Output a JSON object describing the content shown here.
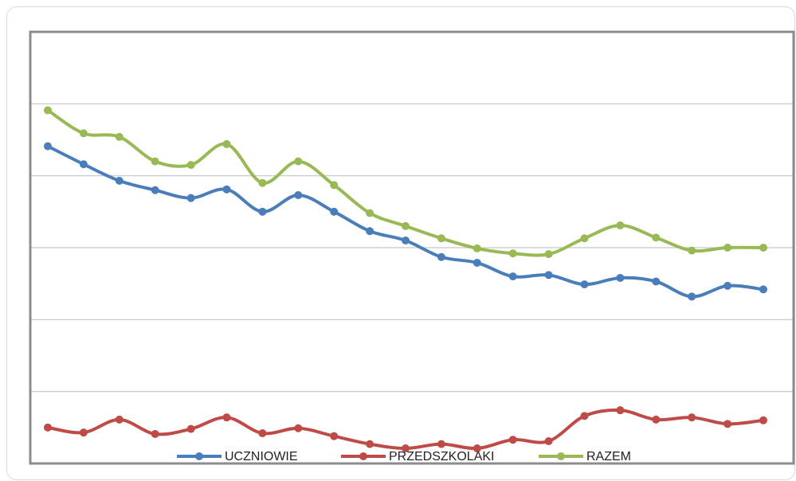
{
  "chart_data": {
    "type": "line",
    "categories": [
      null,
      null,
      null,
      null,
      null,
      null,
      null,
      null,
      null,
      null,
      null,
      null,
      null,
      null,
      null,
      null,
      null,
      null,
      null,
      null,
      null
    ],
    "series": [
      {
        "name": "UCZNIOWIE",
        "color": "#4a7ebb",
        "values": [
          4.41,
          4.16,
          3.93,
          3.8,
          3.69,
          3.81,
          3.5,
          3.73,
          3.5,
          3.23,
          3.1,
          2.87,
          2.79,
          2.6,
          2.62,
          2.49,
          2.58,
          2.53,
          2.32,
          2.47,
          2.42
        ]
      },
      {
        "name": "PRZEDSZKOLAKI",
        "color": "#be4b48",
        "values": [
          0.5,
          0.43,
          0.61,
          0.41,
          0.48,
          0.64,
          0.42,
          0.49,
          0.38,
          0.27,
          0.21,
          0.27,
          0.21,
          0.33,
          0.31,
          0.66,
          0.74,
          0.61,
          0.64,
          0.55,
          0.6
        ]
      },
      {
        "name": "RAZEM",
        "color": "#98b954",
        "values": [
          4.91,
          4.59,
          4.54,
          4.2,
          4.15,
          4.44,
          3.9,
          4.2,
          3.87,
          3.48,
          3.3,
          3.13,
          2.99,
          2.92,
          2.91,
          3.13,
          3.31,
          3.14,
          2.96,
          3.0,
          3.0
        ]
      }
    ],
    "ylim": [
      0,
      6
    ],
    "yticks": [
      1,
      2,
      3,
      4,
      5
    ],
    "grid": true,
    "legend": "bottom",
    "smooth": true
  }
}
